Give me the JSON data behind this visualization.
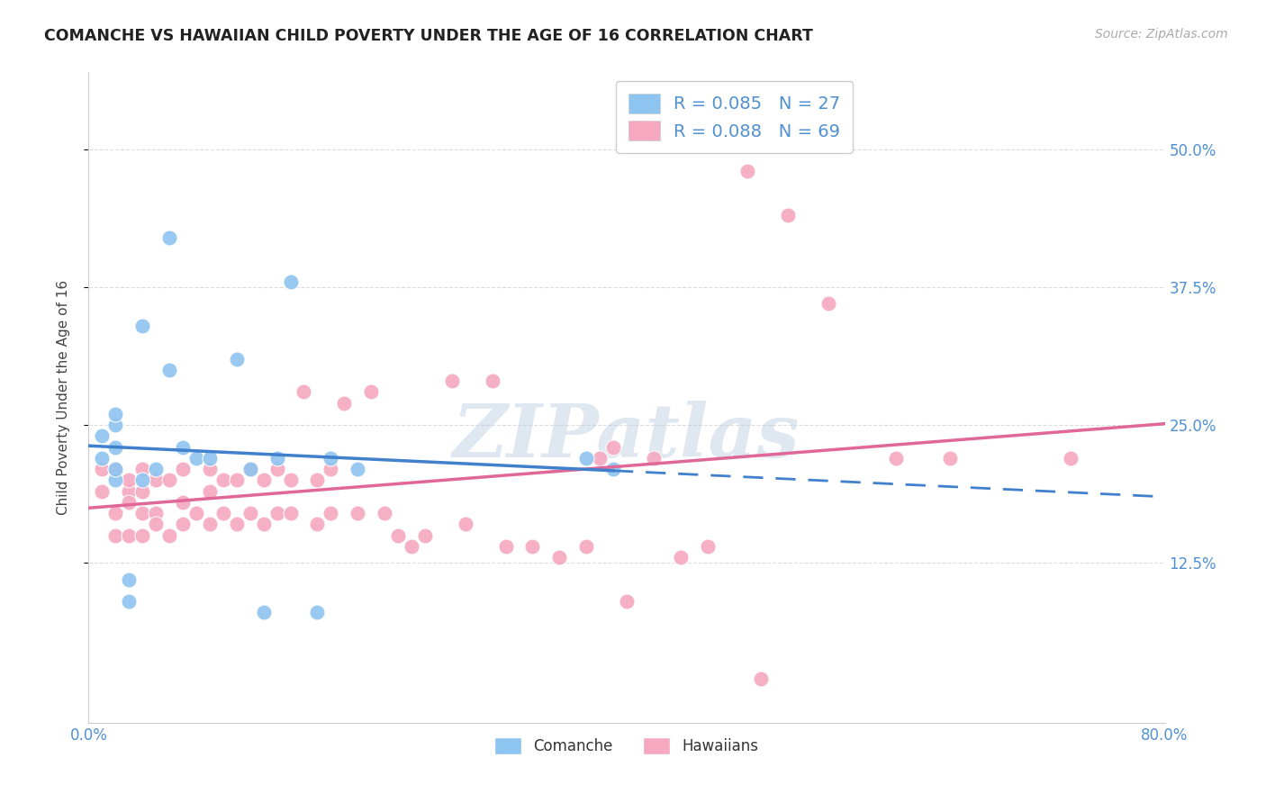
{
  "title": "COMANCHE VS HAWAIIAN CHILD POVERTY UNDER THE AGE OF 16 CORRELATION CHART",
  "source": "Source: ZipAtlas.com",
  "ylabel": "Child Poverty Under the Age of 16",
  "ytick_labels": [
    "50.0%",
    "37.5%",
    "25.0%",
    "12.5%"
  ],
  "ytick_values": [
    0.5,
    0.375,
    0.25,
    0.125
  ],
  "xlim": [
    0.0,
    0.8
  ],
  "ylim": [
    -0.02,
    0.57
  ],
  "comanche_R": 0.085,
  "comanche_N": 27,
  "hawaiian_R": 0.088,
  "hawaiian_N": 69,
  "comanche_color": "#8ec4f0",
  "hawaiian_color": "#f5a8c0",
  "comanche_line_color": "#4080cc",
  "hawaiian_line_color": "#e06898",
  "background_color": "#ffffff",
  "grid_color": "#dddddd",
  "watermark": "ZIPatlas",
  "comanche_x": [
    0.01,
    0.01,
    0.02,
    0.02,
    0.02,
    0.02,
    0.02,
    0.03,
    0.03,
    0.04,
    0.04,
    0.05,
    0.06,
    0.06,
    0.07,
    0.08,
    0.09,
    0.11,
    0.12,
    0.13,
    0.14,
    0.15,
    0.17,
    0.18,
    0.2,
    0.37,
    0.39
  ],
  "comanche_y": [
    0.22,
    0.24,
    0.2,
    0.21,
    0.23,
    0.25,
    0.26,
    0.09,
    0.11,
    0.34,
    0.2,
    0.21,
    0.3,
    0.42,
    0.23,
    0.22,
    0.22,
    0.31,
    0.21,
    0.08,
    0.22,
    0.38,
    0.08,
    0.22,
    0.21,
    0.22,
    0.21
  ],
  "hawaiian_x": [
    0.01,
    0.01,
    0.02,
    0.02,
    0.02,
    0.03,
    0.03,
    0.03,
    0.03,
    0.04,
    0.04,
    0.04,
    0.04,
    0.05,
    0.05,
    0.05,
    0.06,
    0.06,
    0.07,
    0.07,
    0.07,
    0.08,
    0.09,
    0.09,
    0.09,
    0.1,
    0.1,
    0.11,
    0.11,
    0.12,
    0.12,
    0.13,
    0.13,
    0.14,
    0.14,
    0.15,
    0.15,
    0.16,
    0.17,
    0.17,
    0.18,
    0.18,
    0.19,
    0.2,
    0.21,
    0.22,
    0.23,
    0.24,
    0.25,
    0.27,
    0.28,
    0.3,
    0.31,
    0.33,
    0.35,
    0.37,
    0.38,
    0.39,
    0.4,
    0.42,
    0.44,
    0.46,
    0.49,
    0.5,
    0.52,
    0.55,
    0.6,
    0.64,
    0.73
  ],
  "hawaiian_y": [
    0.19,
    0.21,
    0.15,
    0.17,
    0.21,
    0.19,
    0.2,
    0.15,
    0.18,
    0.17,
    0.21,
    0.15,
    0.19,
    0.17,
    0.2,
    0.16,
    0.15,
    0.2,
    0.16,
    0.18,
    0.21,
    0.17,
    0.16,
    0.19,
    0.21,
    0.17,
    0.2,
    0.16,
    0.2,
    0.17,
    0.21,
    0.16,
    0.2,
    0.17,
    0.21,
    0.17,
    0.2,
    0.28,
    0.16,
    0.2,
    0.17,
    0.21,
    0.27,
    0.17,
    0.28,
    0.17,
    0.15,
    0.14,
    0.15,
    0.29,
    0.16,
    0.29,
    0.14,
    0.14,
    0.13,
    0.14,
    0.22,
    0.23,
    0.09,
    0.22,
    0.13,
    0.14,
    0.48,
    0.02,
    0.44,
    0.36,
    0.22,
    0.22,
    0.22
  ]
}
